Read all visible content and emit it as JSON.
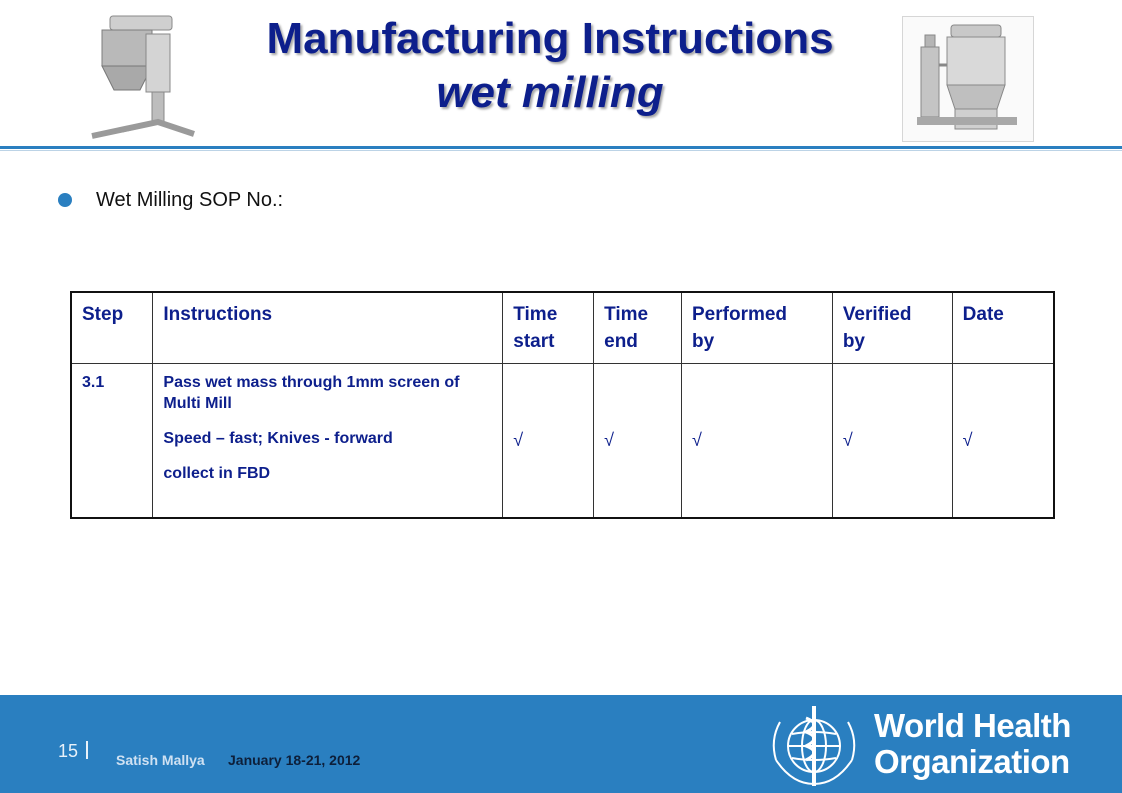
{
  "header": {
    "title_line1": "Manufacturing Instructions",
    "title_line2": "wet milling",
    "left_image": "multi-mill-machine",
    "right_image": "fluid-bed-dryer-machine"
  },
  "bullet": {
    "text": "Wet Milling SOP No.:"
  },
  "table": {
    "headers": [
      {
        "l1": "Step",
        "l2": ""
      },
      {
        "l1": "Instructions",
        "l2": ""
      },
      {
        "l1": "Time",
        "l2": "start"
      },
      {
        "l1": "Time",
        "l2": "end"
      },
      {
        "l1": "Performed",
        "l2": "by"
      },
      {
        "l1": "Verified",
        "l2": "by"
      },
      {
        "l1": "Date",
        "l2": ""
      }
    ],
    "rows": [
      {
        "step": "3.1",
        "instructions": [
          "Pass wet mass through 1mm screen of Multi Mill",
          "Speed – fast; Knives - forward",
          "collect in FBD"
        ],
        "time_start": "√",
        "time_end": "√",
        "performed_by": "√",
        "verified_by": "√",
        "date": "√"
      }
    ]
  },
  "footer": {
    "page_number": "15",
    "author": "Satish Mallya",
    "date": "January 18-21, 2012",
    "org_line1": "World Health",
    "org_line2": "Organization",
    "colors": {
      "band": "#2a7fc0",
      "title": "#0d1f8c"
    }
  }
}
